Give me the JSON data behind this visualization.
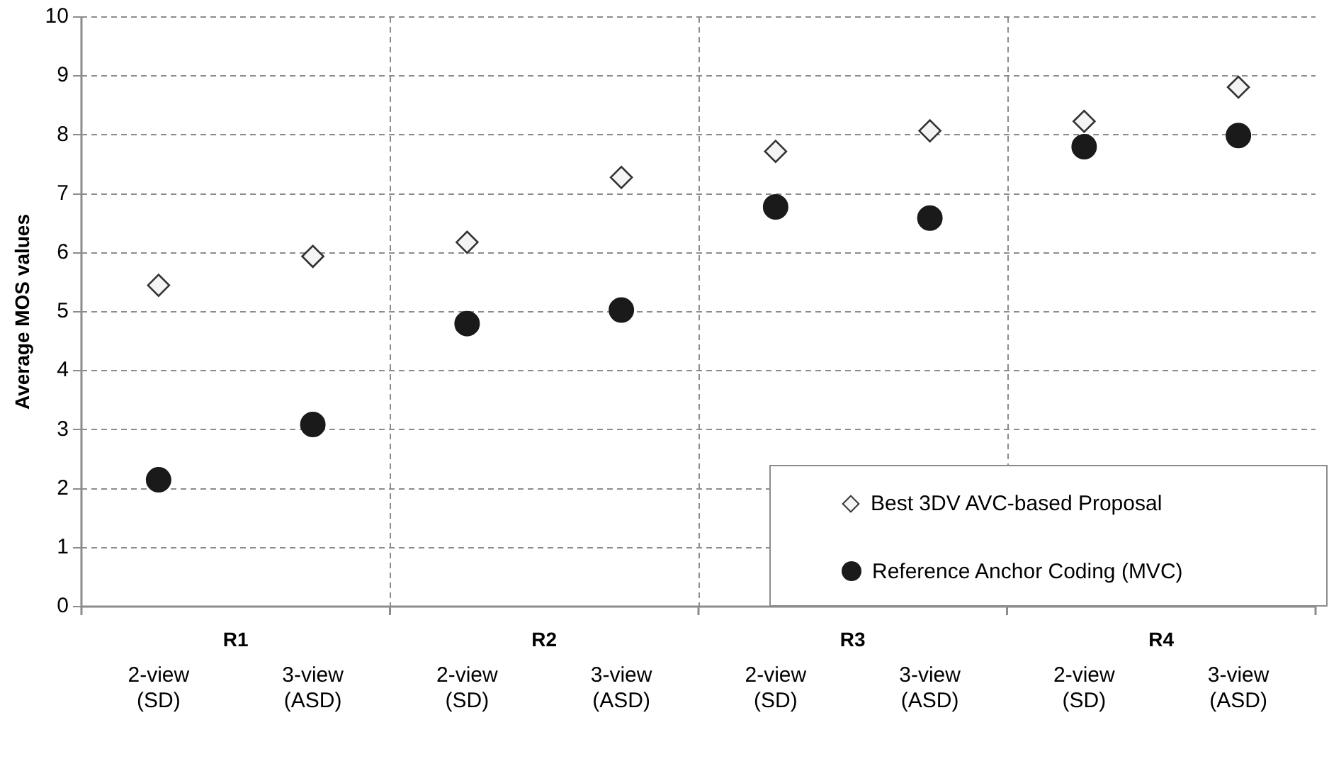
{
  "chart_data": {
    "type": "scatter",
    "ylabel": "Average MOS values",
    "categories": [
      "2-view (SD)",
      "3-view (ASD)",
      "2-view (SD)",
      "3-view (ASD)",
      "2-view (SD)",
      "3-view (ASD)",
      "2-view (SD)",
      "3-view (ASD)"
    ],
    "annotations": [
      "R1",
      "R2",
      "R3",
      "R4"
    ],
    "series": [
      {
        "name": "Best 3DV AVC-based Proposal",
        "color": "#333333",
        "marker": "diamond",
        "values": [
          5.45,
          5.94,
          6.18,
          7.28,
          7.72,
          8.07,
          8.23,
          8.81
        ]
      },
      {
        "name": "Reference Anchor Coding (MVC)",
        "color": "#1a1a1a",
        "marker": "circle",
        "values": [
          2.15,
          3.09,
          4.8,
          5.03,
          6.78,
          6.59,
          7.8,
          7.99
        ]
      }
    ],
    "ylim": [
      0,
      10
    ],
    "yticks": [
      0,
      1,
      2,
      3,
      4,
      5,
      6,
      7,
      8,
      9,
      10
    ],
    "grid": true,
    "legend": "bottom right"
  }
}
